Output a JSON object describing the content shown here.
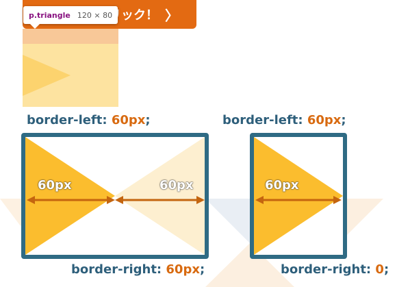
{
  "top_button": {
    "label": "クリック！",
    "chevron": "〉"
  },
  "inspect_tooltip": {
    "selector": "p.triangle",
    "dimensions": "120 × 80"
  },
  "left_diagram": {
    "top_code": {
      "prop": "border-left:",
      "value": "60px",
      "suffix": ";"
    },
    "bottom_code": {
      "prop": "border-right:",
      "value": "60px",
      "suffix": ";"
    },
    "left_width_label": "60px",
    "right_width_label": "60px"
  },
  "right_diagram": {
    "top_code": {
      "prop": "border-left:",
      "value": "60px",
      "suffix": ";"
    },
    "bottom_code": {
      "prop": "border-right:",
      "value": "0",
      "suffix": ";"
    },
    "width_label": "60px"
  },
  "colors": {
    "accent_orange": "#e36a12",
    "triangle_yellow": "#fbbd2e",
    "triangle_faded": "#fdefd0",
    "box_border": "#2f6b84",
    "arrow_brown": "#c4650f",
    "code_blue": "#2e5f7b",
    "code_value": "#d86a10"
  }
}
